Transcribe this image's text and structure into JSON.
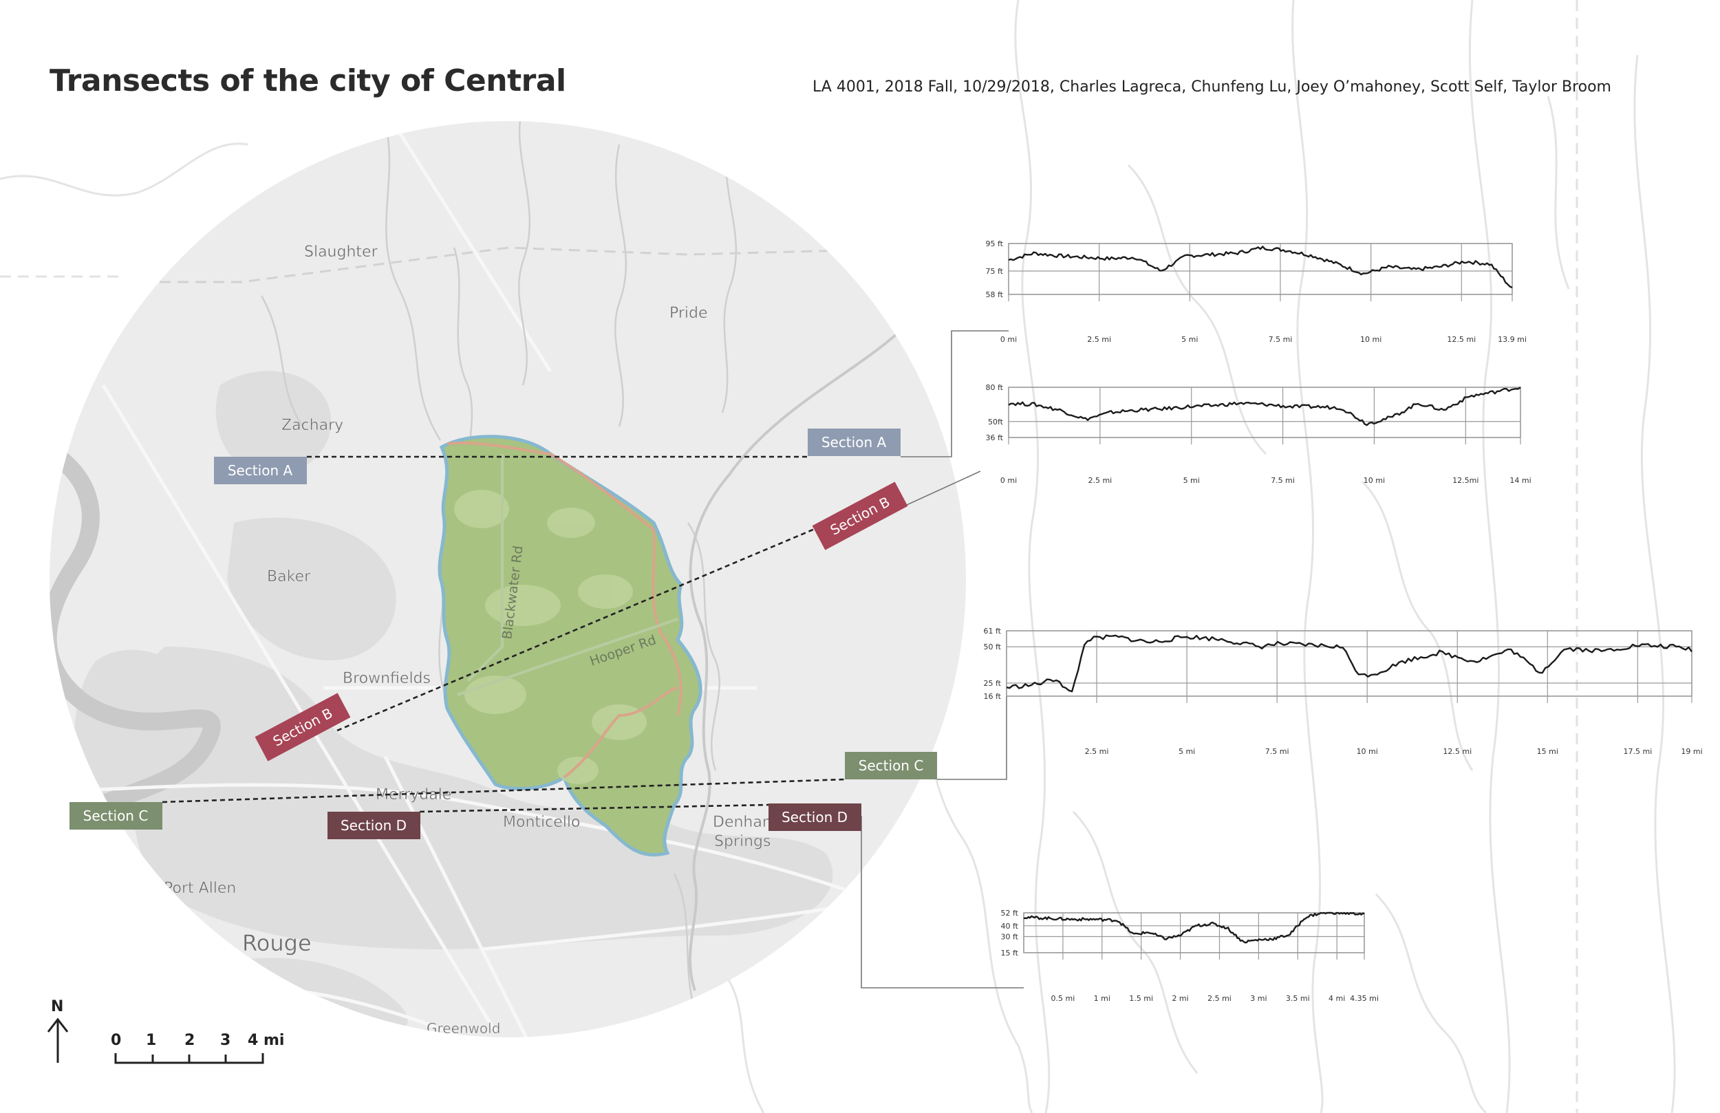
{
  "title": "Transects of the city of Central",
  "credits": "LA 4001, 2018 Fall, 10/29/2018, Charles Lagreca, Chunfeng Lu, Joey O’mahoney, Scott Self, Taylor Broom",
  "places": {
    "slaughter": "Slaughter",
    "pride": "Pride",
    "zachary": "Zachary",
    "baker": "Baker",
    "brownfields": "Brownfields",
    "merrydale": "Merrydale",
    "monticello": "Monticello",
    "denham": "Denham",
    "springs": "Springs",
    "port_allen": "Port Allen",
    "rouge": "Rouge",
    "greenwood": "Greenwold"
  },
  "roads": {
    "blackwater": "Blackwater Rd",
    "hooper": "Hooper Rd"
  },
  "section_labels": {
    "a": "Section A",
    "b": "Section B",
    "c": "Section C",
    "d": "Section D"
  },
  "colors": {
    "section_a": "#8e9bb0",
    "section_b": "#a74456",
    "section_c": "#7c8f6e",
    "section_d": "#6e4349",
    "city_fill": "#9fbd7a",
    "city_edge": "#7fb0c8"
  },
  "north_label": "N",
  "scale_ticks": [
    "0",
    "1",
    "2",
    "3",
    "4 mi"
  ],
  "chart_data": [
    {
      "type": "line",
      "name_label": "Section A",
      "y_ticks": [
        "95 ft",
        "75 ft",
        "58 ft"
      ],
      "y_tick_values": [
        95,
        75,
        58
      ],
      "ylim": [
        58,
        95
      ],
      "x_ticks": [
        "0 mi",
        "2.5 mi",
        "5 mi",
        "7.5 mi",
        "10 mi",
        "12.5 mi",
        "13.9 mi"
      ],
      "x_tick_values": [
        0,
        2.5,
        5,
        7.5,
        10,
        12.5,
        13.9
      ],
      "xlim": [
        0,
        13.9
      ],
      "x": [
        0,
        0.7,
        1.4,
        2.1,
        2.8,
        3.5,
        4.2,
        4.9,
        5.6,
        6.3,
        7.0,
        7.7,
        8.4,
        9.1,
        9.8,
        10.5,
        11.2,
        11.9,
        12.6,
        13.3,
        13.9
      ],
      "values": [
        83,
        88,
        86,
        85,
        84,
        85,
        75,
        86,
        87,
        88,
        92,
        90,
        86,
        80,
        73,
        78,
        76,
        78,
        82,
        80,
        62
      ]
    },
    {
      "type": "line",
      "name_label": "Section B",
      "y_ticks": [
        "80 ft",
        "50ft",
        "36 ft"
      ],
      "y_tick_values": [
        80,
        50,
        36
      ],
      "ylim": [
        36,
        80
      ],
      "x_ticks": [
        "0 mi",
        "2.5 mi",
        "5 mi",
        "7.5 mi",
        "10 mi",
        "12.5mi",
        "14 mi"
      ],
      "x_tick_values": [
        0,
        2.5,
        5,
        7.5,
        10,
        12.5,
        14
      ],
      "xlim": [
        0,
        14
      ],
      "x": [
        0,
        0.7,
        1.4,
        2.1,
        2.8,
        3.5,
        4.2,
        4.9,
        5.6,
        6.3,
        7.0,
        7.7,
        8.4,
        9.1,
        9.8,
        10.5,
        11.2,
        11.9,
        12.6,
        13.3,
        14
      ],
      "values": [
        66,
        65,
        60,
        52,
        58,
        60,
        61,
        63,
        64,
        66,
        65,
        63,
        63,
        62,
        48,
        54,
        66,
        60,
        72,
        76,
        80
      ]
    },
    {
      "type": "line",
      "name_label": "Section C",
      "y_ticks": [
        "61 ft",
        "50 ft",
        "25 ft",
        "16 ft"
      ],
      "y_tick_values": [
        61,
        50,
        25,
        16
      ],
      "ylim": [
        16,
        61
      ],
      "x_ticks": [
        "2.5 mi",
        "5 mi",
        "7.5 mi",
        "10 mi",
        "12.5 mi",
        "15 mi",
        "17.5 mi",
        "19 mi"
      ],
      "x_tick_values": [
        2.5,
        5,
        7.5,
        10,
        12.5,
        15,
        17.5,
        19
      ],
      "xlim": [
        0,
        19
      ],
      "x": [
        0,
        0.8,
        1.4,
        1.8,
        2.2,
        3.0,
        4.0,
        5.0,
        6.0,
        7.0,
        7.5,
        8.5,
        9.3,
        9.8,
        10.3,
        11.0,
        12.0,
        13.0,
        14.0,
        14.8,
        15.5,
        16.5,
        17.5,
        18.5,
        19
      ],
      "values": [
        22,
        24,
        28,
        17,
        55,
        57,
        53,
        57,
        55,
        50,
        52,
        51,
        50,
        30,
        32,
        40,
        46,
        40,
        48,
        32,
        49,
        47,
        51,
        50,
        48
      ]
    },
    {
      "type": "line",
      "name_label": "Section D",
      "y_ticks": [
        "52 ft",
        "40 ft",
        "30 ft",
        "15 ft"
      ],
      "y_tick_values": [
        52,
        40,
        30,
        15
      ],
      "ylim": [
        15,
        52
      ],
      "x_ticks": [
        "0.5 mi",
        "1 mi",
        "1.5 mi",
        "2 mi",
        "2.5 mi",
        "3 mi",
        "3.5 mi",
        "4 mi",
        "4.35 mi"
      ],
      "x_tick_values": [
        0.5,
        1,
        1.5,
        2,
        2.5,
        3,
        3.5,
        4,
        4.35
      ],
      "xlim": [
        0,
        4.35
      ],
      "x": [
        0,
        0.3,
        0.6,
        0.9,
        1.2,
        1.4,
        1.6,
        1.8,
        2.0,
        2.2,
        2.4,
        2.6,
        2.8,
        3.0,
        3.2,
        3.4,
        3.6,
        3.8,
        4.0,
        4.35
      ],
      "values": [
        48,
        47,
        46,
        46,
        45,
        32,
        34,
        28,
        31,
        40,
        42,
        38,
        25,
        27,
        28,
        32,
        48,
        52,
        52,
        51
      ]
    }
  ]
}
